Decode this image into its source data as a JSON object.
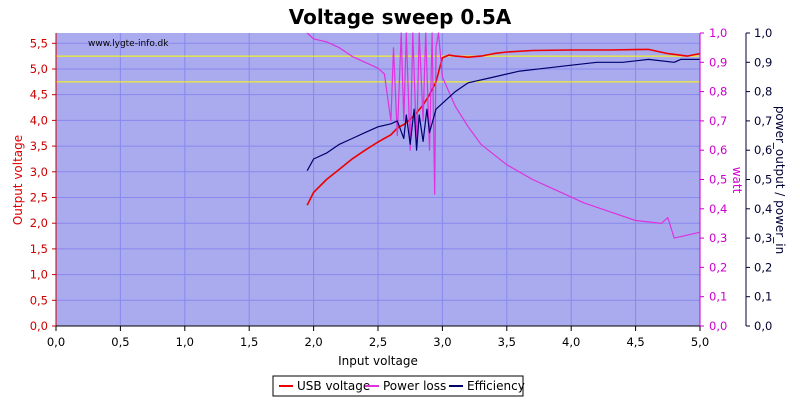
{
  "chart_data": {
    "type": "line",
    "title": "Voltage sweep 0.5A",
    "watermark": "www.lygte-info.dk",
    "xlabel": "Input voltage",
    "ylabel_left": "Output voltage",
    "ylabel_right_1": "watt",
    "ylabel_right_2": "power_output / power_in",
    "xlim": [
      0,
      5
    ],
    "ylim_left": [
      0,
      5.7
    ],
    "ylim_right": [
      0,
      1
    ],
    "x_ticks": [
      "0,0",
      "0,5",
      "1,0",
      "1,5",
      "2,0",
      "2,5",
      "3,0",
      "3,5",
      "4,0",
      "4,5",
      "5,0"
    ],
    "y_left_ticks": [
      "0,0",
      "0,5",
      "1,0",
      "1,5",
      "2,0",
      "2,5",
      "3,0",
      "3,5",
      "4,0",
      "4,5",
      "5,0",
      "5,5"
    ],
    "y_right_ticks": [
      "0,0",
      "0,1",
      "0,2",
      "0,3",
      "0,4",
      "0,5",
      "0,6",
      "0,7",
      "0,8",
      "0,9",
      "1,0"
    ],
    "reference_lines_left_axis": [
      4.75,
      5.25
    ],
    "grid": true,
    "legend_position": "bottom-center",
    "colors": {
      "plot_bg": "#aaaaee",
      "usb_voltage": "#ee0000",
      "power_loss": "#dd33dd",
      "efficiency": "#00006e",
      "reference": "#ffff00",
      "left_axis": "#cc0000",
      "right_axis_1": "#cc00cc",
      "right_axis_2": "#000033",
      "grid": "#8888ee"
    },
    "series": [
      {
        "name": "USB voltage",
        "axis": "left",
        "points": [
          [
            1.95,
            2.35
          ],
          [
            2.0,
            2.6
          ],
          [
            2.1,
            2.85
          ],
          [
            2.2,
            3.05
          ],
          [
            2.3,
            3.25
          ],
          [
            2.4,
            3.42
          ],
          [
            2.5,
            3.58
          ],
          [
            2.6,
            3.72
          ],
          [
            2.65,
            3.85
          ],
          [
            2.7,
            3.92
          ],
          [
            2.75,
            4.02
          ],
          [
            2.8,
            4.15
          ],
          [
            2.85,
            4.3
          ],
          [
            2.9,
            4.5
          ],
          [
            2.95,
            4.75
          ],
          [
            3.0,
            5.22
          ],
          [
            3.05,
            5.27
          ],
          [
            3.1,
            5.25
          ],
          [
            3.2,
            5.23
          ],
          [
            3.3,
            5.25
          ],
          [
            3.4,
            5.3
          ],
          [
            3.5,
            5.33
          ],
          [
            3.7,
            5.36
          ],
          [
            4.0,
            5.37
          ],
          [
            4.3,
            5.37
          ],
          [
            4.6,
            5.38
          ],
          [
            4.75,
            5.3
          ],
          [
            4.9,
            5.25
          ],
          [
            5.0,
            5.3
          ]
        ]
      },
      {
        "name": "Power loss",
        "axis": "right",
        "points": [
          [
            1.95,
            1.0
          ],
          [
            2.0,
            0.98
          ],
          [
            2.1,
            0.97
          ],
          [
            2.2,
            0.95
          ],
          [
            2.3,
            0.92
          ],
          [
            2.4,
            0.9
          ],
          [
            2.5,
            0.88
          ],
          [
            2.55,
            0.86
          ],
          [
            2.6,
            0.7
          ],
          [
            2.62,
            0.95
          ],
          [
            2.65,
            0.65
          ],
          [
            2.68,
            1.0
          ],
          [
            2.7,
            0.7
          ],
          [
            2.72,
            1.0
          ],
          [
            2.75,
            0.6
          ],
          [
            2.77,
            1.0
          ],
          [
            2.8,
            0.62
          ],
          [
            2.82,
            1.0
          ],
          [
            2.85,
            0.7
          ],
          [
            2.87,
            1.0
          ],
          [
            2.9,
            0.6
          ],
          [
            2.92,
            1.0
          ],
          [
            2.94,
            0.45
          ],
          [
            2.95,
            0.95
          ],
          [
            2.97,
            1.0
          ],
          [
            3.0,
            0.85
          ],
          [
            3.1,
            0.75
          ],
          [
            3.2,
            0.68
          ],
          [
            3.3,
            0.62
          ],
          [
            3.5,
            0.55
          ],
          [
            3.7,
            0.5
          ],
          [
            3.9,
            0.46
          ],
          [
            4.1,
            0.42
          ],
          [
            4.3,
            0.39
          ],
          [
            4.5,
            0.36
          ],
          [
            4.7,
            0.35
          ],
          [
            4.75,
            0.37
          ],
          [
            4.8,
            0.3
          ],
          [
            4.9,
            0.31
          ],
          [
            5.0,
            0.32
          ]
        ]
      },
      {
        "name": "Efficiency",
        "axis": "right",
        "points": [
          [
            1.95,
            0.53
          ],
          [
            2.0,
            0.57
          ],
          [
            2.1,
            0.59
          ],
          [
            2.2,
            0.62
          ],
          [
            2.3,
            0.64
          ],
          [
            2.4,
            0.66
          ],
          [
            2.5,
            0.68
          ],
          [
            2.6,
            0.69
          ],
          [
            2.65,
            0.7
          ],
          [
            2.7,
            0.64
          ],
          [
            2.72,
            0.72
          ],
          [
            2.75,
            0.62
          ],
          [
            2.78,
            0.74
          ],
          [
            2.8,
            0.6
          ],
          [
            2.82,
            0.72
          ],
          [
            2.85,
            0.63
          ],
          [
            2.88,
            0.74
          ],
          [
            2.9,
            0.66
          ],
          [
            2.95,
            0.74
          ],
          [
            3.0,
            0.76
          ],
          [
            3.1,
            0.8
          ],
          [
            3.2,
            0.83
          ],
          [
            3.4,
            0.85
          ],
          [
            3.6,
            0.87
          ],
          [
            3.8,
            0.88
          ],
          [
            4.0,
            0.89
          ],
          [
            4.2,
            0.9
          ],
          [
            4.4,
            0.9
          ],
          [
            4.6,
            0.91
          ],
          [
            4.8,
            0.9
          ],
          [
            4.85,
            0.91
          ],
          [
            5.0,
            0.91
          ]
        ]
      }
    ]
  }
}
